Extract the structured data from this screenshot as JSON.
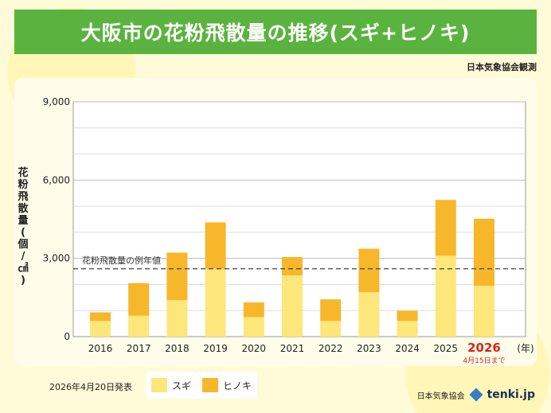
{
  "title": "大阪市の花粉飛散量の推移(スギ+ヒノキ)",
  "source": "日本気象協会観測",
  "release_date": "2026年4月20日発表",
  "credit_org": "日本気象協会",
  "credit_brand": "tenki.jp",
  "colors": {
    "sugi": "#fde67a",
    "hinoki": "#f7b72a",
    "header": "#5bb33f"
  },
  "chart_data": {
    "type": "bar",
    "stacked": true,
    "categories": [
      "2016",
      "2017",
      "2018",
      "2019",
      "2020",
      "2021",
      "2022",
      "2023",
      "2024",
      "2025",
      "2026"
    ],
    "series": [
      {
        "name": "スギ",
        "values": [
          600,
          800,
          1400,
          2600,
          750,
          2350,
          600,
          1700,
          600,
          3100,
          1950
        ]
      },
      {
        "name": "ヒノキ",
        "values": [
          330,
          1250,
          1820,
          1780,
          560,
          700,
          830,
          1670,
          390,
          2140,
          2570
        ]
      }
    ],
    "ylim": [
      0,
      9000
    ],
    "yticks": [
      0,
      3000,
      6000,
      9000
    ],
    "ytick_labels": [
      "0",
      "3,000",
      "6,000",
      "9,000"
    ],
    "ylabel": "花粉飛散量(個/㎠)",
    "xunit": "(年)",
    "normal_value": 2600,
    "normal_label": "花粉飛散量の例年値",
    "highlight_category": "2026",
    "highlight_note": "4月15日まで",
    "legend": [
      "スギ",
      "ヒノキ"
    ]
  }
}
